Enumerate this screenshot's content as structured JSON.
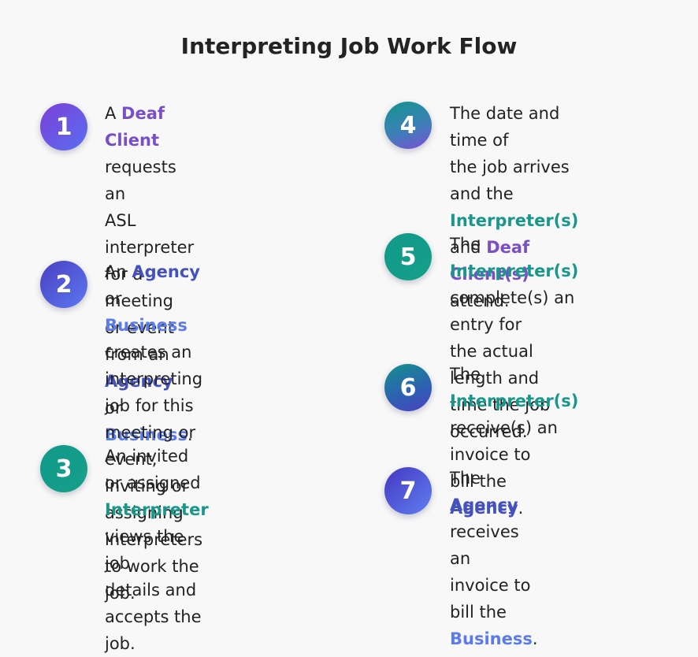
{
  "title": "Interpreting Job Work Flow",
  "colors": {
    "deaf_client": "#7a4fc6",
    "agency": "#4552bd",
    "business": "#5b7bec",
    "interpreter": "#19978a"
  },
  "steps": [
    {
      "number": "1",
      "parts": [
        {
          "t": "A "
        },
        {
          "t": "Deaf Client",
          "c": "purple"
        },
        {
          "t": " requests an"
        },
        {
          "br": true
        },
        {
          "t": "ASL interpreter"
        },
        {
          "br": true
        },
        {
          "t": "for a meeting or event"
        },
        {
          "br": true
        },
        {
          "t": "from an "
        },
        {
          "t": "Agency",
          "c": "indigo"
        },
        {
          "t": " or"
        },
        {
          "br": true
        },
        {
          "t": "Business",
          "c": "blue"
        },
        {
          "t": "."
        }
      ]
    },
    {
      "number": "2",
      "parts": [
        {
          "t": "An "
        },
        {
          "t": "Agency",
          "c": "indigo"
        },
        {
          "t": " or "
        },
        {
          "t": "Business",
          "c": "blue"
        },
        {
          "br": true
        },
        {
          "t": "creates an interpreting"
        },
        {
          "br": true
        },
        {
          "t": "job for this meeting or"
        },
        {
          "br": true
        },
        {
          "t": "event, inviting or assigning"
        },
        {
          "br": true
        },
        {
          "t": "interpreters to work the"
        },
        {
          "br": true
        },
        {
          "t": "job."
        }
      ]
    },
    {
      "number": "3",
      "parts": [
        {
          "t": "An invited or assigned"
        },
        {
          "br": true
        },
        {
          "t": "Interpreter",
          "c": "teal"
        },
        {
          "t": " views the job"
        },
        {
          "br": true
        },
        {
          "t": "details and accepts the"
        },
        {
          "br": true
        },
        {
          "t": "job."
        }
      ]
    },
    {
      "number": "4",
      "parts": [
        {
          "t": "The date and time of"
        },
        {
          "br": true
        },
        {
          "t": "the job arrives and the"
        },
        {
          "br": true
        },
        {
          "t": "Interpreter(s)",
          "c": "teal"
        },
        {
          "t": " and "
        },
        {
          "t": "Deaf",
          "c": "purple"
        },
        {
          "br": true
        },
        {
          "t": "Client(s)",
          "c": "purple"
        },
        {
          "t": " attend."
        }
      ]
    },
    {
      "number": "5",
      "parts": [
        {
          "t": "The "
        },
        {
          "t": "Interpreter(s)",
          "c": "teal"
        },
        {
          "br": true
        },
        {
          "t": "complete(s) an entry for"
        },
        {
          "br": true
        },
        {
          "t": "the actual length and"
        },
        {
          "br": true
        },
        {
          "t": "time the job occurred."
        }
      ]
    },
    {
      "number": "6",
      "parts": [
        {
          "t": "The "
        },
        {
          "t": "Interpreter(s)",
          "c": "teal"
        },
        {
          "br": true
        },
        {
          "t": "receive(s) an invoice to"
        },
        {
          "br": true
        },
        {
          "t": "bill the "
        },
        {
          "t": "Agency",
          "c": "indigo"
        },
        {
          "t": "."
        }
      ]
    },
    {
      "number": "7",
      "parts": [
        {
          "t": "The "
        },
        {
          "t": "Agency",
          "c": "indigo"
        },
        {
          "t": " receives an"
        },
        {
          "br": true
        },
        {
          "t": "invoice to bill the"
        },
        {
          "br": true
        },
        {
          "t": "Business",
          "c": "blue"
        },
        {
          "t": "."
        }
      ]
    }
  ]
}
